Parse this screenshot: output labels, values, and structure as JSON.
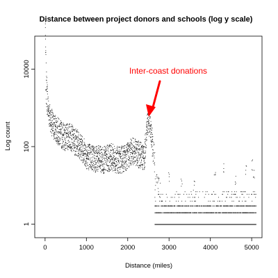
{
  "chart_data": {
    "type": "scatter",
    "title": "Distance between project donors and schools (log y scale)",
    "xlabel": "Distance (miles)",
    "ylabel": "Log count",
    "xlim": [
      -250,
      5250
    ],
    "ylim_log10": [
      -0.35,
      4.85
    ],
    "y_scale": "log",
    "x_ticks": [
      0,
      1000,
      2000,
      3000,
      4000,
      5000
    ],
    "x_tick_labels": [
      "0",
      "1000",
      "2000",
      "3000",
      "4000",
      "5000"
    ],
    "y_ticks": [
      1,
      100,
      10000
    ],
    "y_tick_labels": [
      "1",
      "100",
      "10000"
    ],
    "grid": false,
    "legend": "none",
    "point_color": "#000000",
    "annotation": {
      "text": "Inter-coast donations",
      "color": "#ff0000",
      "points_to": {
        "x": 2650,
        "y": 900
      }
    },
    "series_description_points": {
      "x": [
        0,
        10,
        20,
        40,
        60,
        80,
        100,
        150,
        200,
        300,
        400,
        500,
        600,
        700,
        800,
        900,
        1000,
        1100,
        1200,
        1300,
        1400,
        1500,
        1600,
        1700,
        1800,
        1900,
        2000,
        2100,
        2200,
        2300,
        2400,
        2450,
        2500,
        2550,
        2600,
        2650,
        2700,
        2800,
        3000,
        3500,
        4000,
        4500,
        5000
      ],
      "y": [
        120000,
        9000,
        4000,
        2200,
        1200,
        800,
        650,
        450,
        330,
        260,
        200,
        170,
        190,
        140,
        120,
        90,
        60,
        55,
        50,
        48,
        45,
        50,
        55,
        48,
        45,
        50,
        60,
        80,
        70,
        60,
        55,
        300,
        500,
        250,
        100,
        40,
        15,
        8,
        5,
        3,
        3,
        3,
        3
      ]
    }
  }
}
